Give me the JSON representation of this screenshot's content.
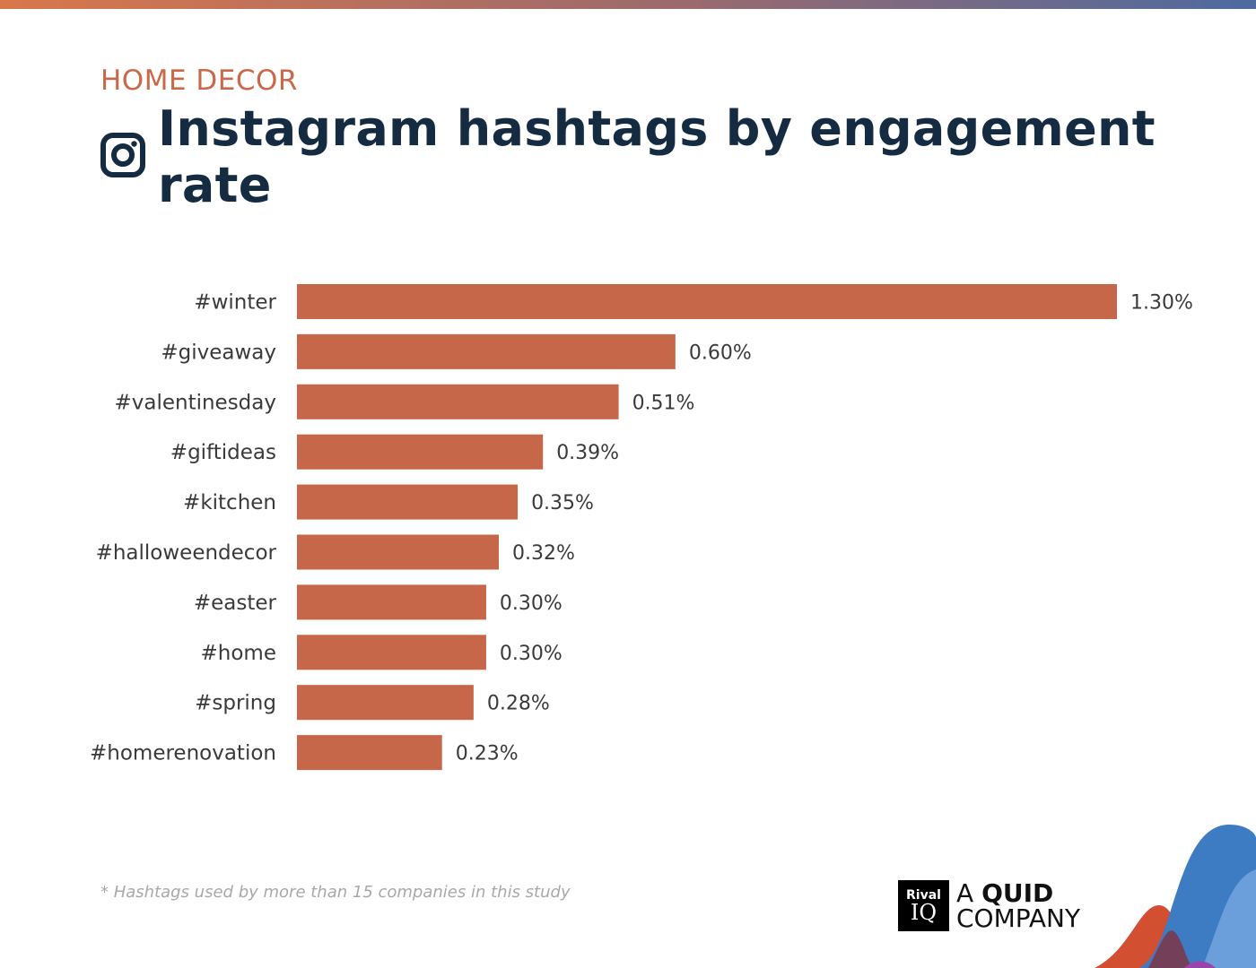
{
  "header": {
    "category": "HOME DECOR",
    "title": "Instagram hashtags by engagement rate",
    "icon": "instagram-icon"
  },
  "footnote": "* Hashtags used by more than 15 companies in this study",
  "logo": {
    "rival": "Rival",
    "iq": "IQ",
    "line1_a": "A",
    "line1_b": "QUID",
    "line2": "COMPANY"
  },
  "colors": {
    "bar": "#c6674a",
    "title": "#152b42",
    "accent": "#c8694a"
  },
  "chart_data": {
    "type": "bar",
    "orientation": "horizontal",
    "title": "Instagram hashtags by engagement rate",
    "categories": [
      "#winter",
      "#giveaway",
      "#valentinesday",
      "#giftideas",
      "#kitchen",
      "#halloweendecor",
      "#easter",
      "#home",
      "#spring",
      "#homerenovation"
    ],
    "values": [
      1.3,
      0.6,
      0.51,
      0.39,
      0.35,
      0.32,
      0.3,
      0.3,
      0.28,
      0.23
    ],
    "labels": [
      "1.30%",
      "0.60%",
      "0.51%",
      "0.39%",
      "0.35%",
      "0.32%",
      "0.30%",
      "0.30%",
      "0.28%",
      "0.23%"
    ],
    "xlabel": "",
    "ylabel": "",
    "unit": "%",
    "xlim": [
      0,
      1.3
    ],
    "grid": false
  }
}
